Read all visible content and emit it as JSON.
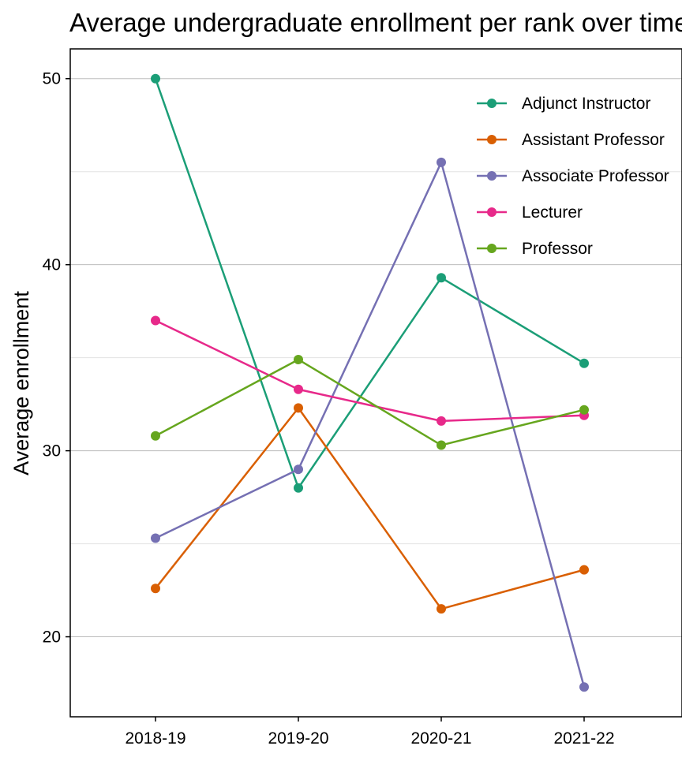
{
  "chart_data": {
    "type": "line",
    "title": "Average undergraduate enrollment per rank over time",
    "xlabel": "",
    "ylabel": "Average enrollment",
    "categories": [
      "2018-19",
      "2019-20",
      "2020-21",
      "2021-22"
    ],
    "y_ticks": [
      20,
      30,
      40,
      50
    ],
    "ylim": [
      15.7,
      51.6
    ],
    "grid": true,
    "legend_position": "top-right",
    "series": [
      {
        "name": "Adjunct Instructor",
        "color": "#1b9e77",
        "values": [
          50.0,
          28.0,
          39.3,
          34.7
        ]
      },
      {
        "name": "Assistant Professor",
        "color": "#d95f02",
        "values": [
          22.6,
          32.3,
          21.5,
          23.6
        ]
      },
      {
        "name": "Associate Professor",
        "color": "#7570b3",
        "values": [
          25.3,
          29.0,
          45.5,
          17.3
        ]
      },
      {
        "name": "Lecturer",
        "color": "#e7298a",
        "values": [
          37.0,
          33.3,
          31.6,
          31.9
        ]
      },
      {
        "name": "Professor",
        "color": "#66a61e",
        "values": [
          30.8,
          34.9,
          30.3,
          32.2
        ]
      }
    ]
  }
}
